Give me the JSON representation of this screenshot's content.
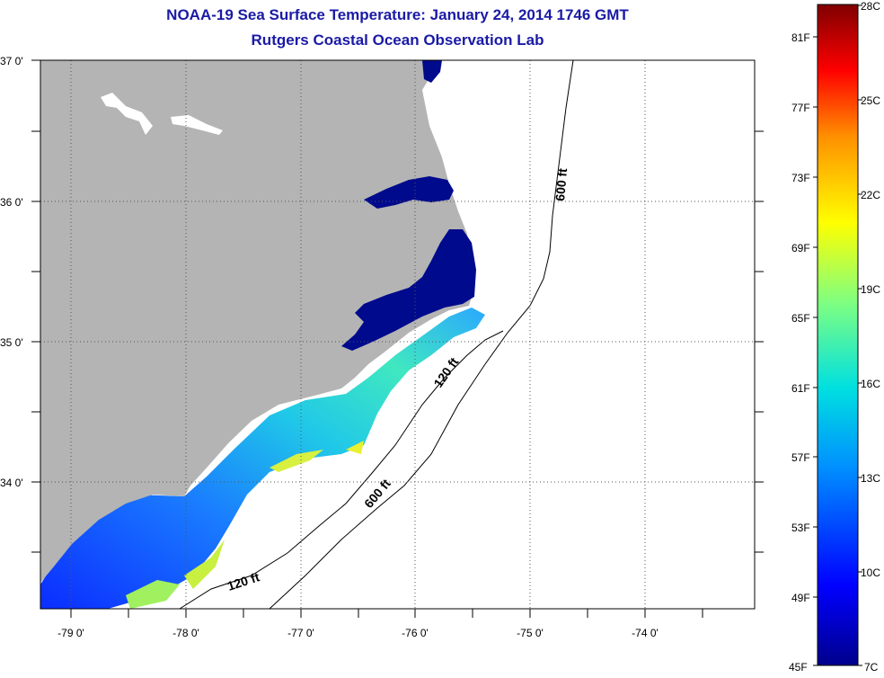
{
  "title": "NOAA-19 Sea Surface Temperature:  January 24, 2014 1746 GMT",
  "subtitle": "Rutgers Coastal Ocean Observation Lab",
  "map": {
    "lat_labels": [
      "37 0'",
      "36 0'",
      "35 0'",
      "34 0'"
    ],
    "lon_labels": [
      "-79 0'",
      "-78 0'",
      "-77 0'",
      "-76 0'",
      "-75 0'",
      "-74 0'"
    ],
    "contour_labels": {
      "c120a": "120 ft",
      "c120b": "120 ft",
      "c600a": "600 ft",
      "c600b": "600 ft"
    },
    "colors": {
      "land": "#b4b4b4",
      "ocean": "#ffffff",
      "sound": "#000a8c"
    }
  },
  "colorbar": {
    "celsius_labels": [
      "28C",
      "25C",
      "22C",
      "19C",
      "16C",
      "13C",
      "10C",
      "7C"
    ],
    "fahrenheit_labels": [
      "81F",
      "77F",
      "73F",
      "69F",
      "65F",
      "61F",
      "57F",
      "53F",
      "49F",
      "45F"
    ],
    "range_c": [
      7,
      28
    ],
    "range_f": [
      45,
      82
    ]
  }
}
